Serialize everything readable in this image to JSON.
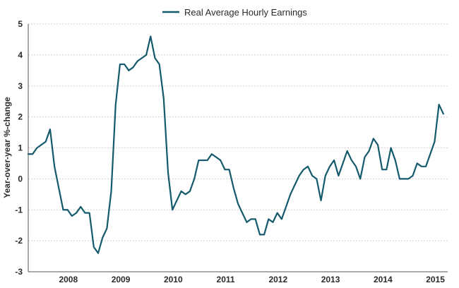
{
  "chart_data": {
    "type": "line",
    "title": "",
    "xlabel": "",
    "ylabel": "Year-over-year %-change",
    "ylim": [
      -3,
      5
    ],
    "yticks": [
      -3,
      -2,
      -1,
      0,
      1,
      2,
      3,
      4,
      5
    ],
    "xlim": [
      2007.25,
      2015.25
    ],
    "xticks": [
      {
        "label": "2008",
        "x": 2008.0
      },
      {
        "label": "2009",
        "x": 2009.0
      },
      {
        "label": "2010",
        "x": 2010.0
      },
      {
        "label": "2011",
        "x": 2011.0
      },
      {
        "label": "2012",
        "x": 2012.0
      },
      {
        "label": "2013",
        "x": 2013.0
      },
      {
        "label": "2014",
        "x": 2014.0
      },
      {
        "label": "2015",
        "x": 2015.0
      }
    ],
    "grid": {
      "horizontal": true,
      "vertical": false
    },
    "legend": {
      "position": "top-center"
    },
    "series": [
      {
        "name": "Real Average Hourly Earnings",
        "color": "#145a6c",
        "x": [
          2007.25,
          2007.333,
          2007.417,
          2007.5,
          2007.583,
          2007.667,
          2007.75,
          2007.833,
          2007.917,
          2008.0,
          2008.083,
          2008.167,
          2008.25,
          2008.333,
          2008.417,
          2008.5,
          2008.583,
          2008.667,
          2008.75,
          2008.833,
          2008.917,
          2009.0,
          2009.083,
          2009.167,
          2009.25,
          2009.333,
          2009.417,
          2009.5,
          2009.583,
          2009.667,
          2009.75,
          2009.833,
          2009.917,
          2010.0,
          2010.083,
          2010.167,
          2010.25,
          2010.333,
          2010.417,
          2010.5,
          2010.583,
          2010.667,
          2010.75,
          2010.833,
          2010.917,
          2011.0,
          2011.083,
          2011.167,
          2011.25,
          2011.333,
          2011.417,
          2011.5,
          2011.583,
          2011.667,
          2011.75,
          2011.833,
          2011.917,
          2012.0,
          2012.083,
          2012.167,
          2012.25,
          2012.333,
          2012.417,
          2012.5,
          2012.583,
          2012.667,
          2012.75,
          2012.833,
          2012.917,
          2013.0,
          2013.083,
          2013.167,
          2013.25,
          2013.333,
          2013.417,
          2013.5,
          2013.583,
          2013.667,
          2013.75,
          2013.833,
          2013.917,
          2014.0,
          2014.083,
          2014.167,
          2014.25,
          2014.333,
          2014.417,
          2014.5,
          2014.583,
          2014.667,
          2014.75,
          2014.833,
          2014.917,
          2015.0,
          2015.083,
          2015.167
        ],
        "values": [
          0.8,
          0.8,
          1.0,
          1.1,
          1.2,
          1.6,
          0.4,
          -0.3,
          -1.0,
          -1.0,
          -1.2,
          -1.1,
          -0.9,
          -1.1,
          -1.1,
          -2.2,
          -2.4,
          -1.9,
          -1.6,
          -0.4,
          2.4,
          3.7,
          3.7,
          3.5,
          3.6,
          3.8,
          3.9,
          4.0,
          4.6,
          3.9,
          3.7,
          2.6,
          0.2,
          -1.0,
          -0.7,
          -0.4,
          -0.5,
          -0.4,
          0.0,
          0.6,
          0.6,
          0.6,
          0.8,
          0.7,
          0.6,
          0.3,
          0.3,
          -0.3,
          -0.8,
          -1.1,
          -1.4,
          -1.3,
          -1.3,
          -1.8,
          -1.8,
          -1.3,
          -1.4,
          -1.1,
          -1.3,
          -0.9,
          -0.5,
          -0.2,
          0.1,
          0.3,
          0.4,
          0.1,
          0.0,
          -0.7,
          0.1,
          0.4,
          0.6,
          0.1,
          0.5,
          0.9,
          0.6,
          0.4,
          0.0,
          0.7,
          0.9,
          1.3,
          1.1,
          0.3,
          0.3,
          1.0,
          0.6,
          0.0,
          0.0,
          0.0,
          0.1,
          0.5,
          0.4,
          0.4,
          0.8,
          1.2,
          2.4,
          2.1
        ]
      }
    ]
  }
}
